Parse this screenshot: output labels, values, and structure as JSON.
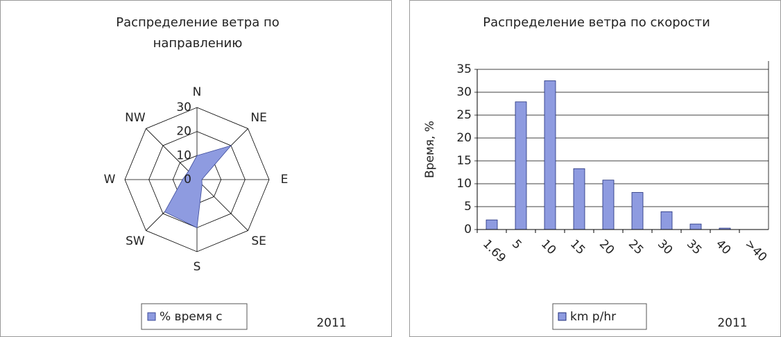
{
  "chart_data": [
    {
      "type": "radar",
      "title": "Распределение ветра по направлению",
      "categories": [
        "N",
        "NE",
        "E",
        "SE",
        "S",
        "SW",
        "W",
        "NW"
      ],
      "rlim": [
        0,
        30
      ],
      "rticks": [
        0,
        10,
        20,
        30
      ],
      "series": [
        {
          "name": "% время с",
          "color": "#8e9be0",
          "values": [
            10,
            20,
            2,
            3,
            20,
            19,
            6,
            5
          ]
        }
      ],
      "annotation": "2011"
    },
    {
      "type": "bar",
      "title": "Распределение ветра по скорости",
      "ylabel": "Время, %",
      "categories": [
        "1.69",
        "5",
        "10",
        "15",
        "20",
        "25",
        "30",
        "35",
        "40",
        ">40"
      ],
      "series": [
        {
          "name": "km p/hr",
          "color": "#8e9be0",
          "values": [
            2.1,
            27.9,
            32.5,
            13.3,
            10.8,
            8.1,
            3.9,
            1.2,
            0.3,
            0
          ]
        }
      ],
      "ylim": [
        0,
        35
      ],
      "yticks": [
        0,
        5,
        10,
        15,
        20,
        25,
        30,
        35
      ],
      "grid": true,
      "annotation": "2011"
    }
  ]
}
